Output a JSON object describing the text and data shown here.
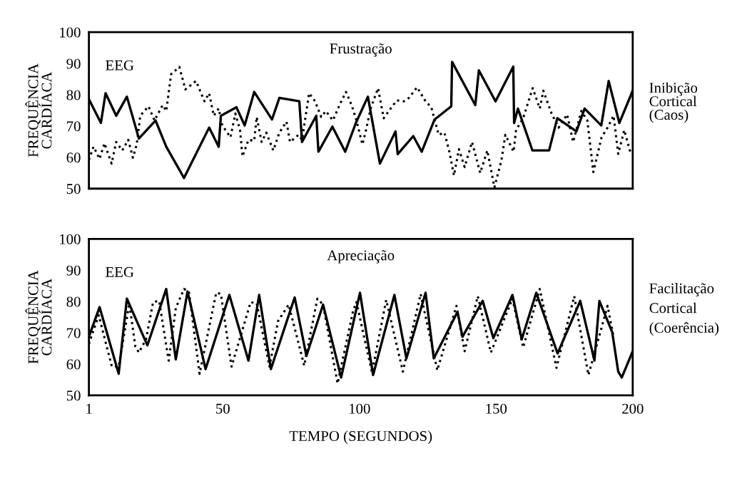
{
  "chart_data": [
    {
      "type": "line",
      "title": "Frustração",
      "ylabel": "FREQUÊNCIA\nCARDÍACA",
      "xlim": [
        1,
        200
      ],
      "ylim": [
        50,
        100
      ],
      "yticks": [
        50,
        60,
        70,
        80,
        90,
        100
      ],
      "tick_labels": "y",
      "grid": false,
      "legend": false,
      "annotations": [
        "EEG",
        "Inibição\nCortical\n(Caos)"
      ],
      "series": [
        {
          "color": "#000000",
          "line_style": "solid",
          "x": [
            1,
            5.4,
            7.1,
            11,
            14.9,
            19.3,
            25.4,
            29.3,
            35.8,
            45,
            48.5,
            49.3,
            55,
            58,
            61.5,
            68,
            70.7,
            78,
            79,
            84.2,
            85,
            90.1,
            94.8,
            98.7,
            103.1,
            107.5,
            113.2,
            114,
            119.7,
            122.8,
            127.5,
            133.6,
            133.9,
            142.4,
            143.7,
            149.8,
            156.3,
            156.6,
            158,
            163.3,
            169.4,
            172.4,
            179.4,
            182.4,
            188.5,
            191.2,
            195.1,
            200
          ],
          "values": [
            78.6,
            71,
            80.5,
            73.3,
            79.4,
            66,
            71.8,
            63.4,
            53.4,
            69.5,
            63.4,
            73.3,
            76,
            70.2,
            80.9,
            72.1,
            79,
            77.9,
            64.9,
            73.3,
            61.8,
            69.8,
            61.8,
            71,
            79.4,
            58,
            68.3,
            61,
            66.8,
            61.8,
            72.1,
            76.3,
            90.5,
            76.7,
            87.8,
            77.9,
            89,
            71,
            75.6,
            62.2,
            62.2,
            72.5,
            68.3,
            75.6,
            70.2,
            84.4,
            71,
            81.3
          ]
        },
        {
          "color": "#000000",
          "line_style": "dotted",
          "x": [
            1,
            2.7,
            4.9,
            6.7,
            9.3,
            11,
            13.2,
            15.4,
            17.1,
            18.5,
            19.8,
            22.8,
            25,
            28,
            29.3,
            31.1,
            34.1,
            36.3,
            40.2,
            43.3,
            45,
            46.7,
            48.5,
            49.8,
            52.8,
            54.6,
            56.3,
            57.2,
            59.4,
            61.5,
            62.4,
            64.2,
            65.9,
            68.5,
            70.7,
            73.3,
            74.6,
            77.7,
            79,
            81.6,
            83.8,
            86,
            87.7,
            90.3,
            92.9,
            95.1,
            97.3,
            98.9,
            101.1,
            102.4,
            104.1,
            106.8,
            108.9,
            112,
            113.7,
            116.3,
            118.1,
            121.1,
            124.2,
            126.3,
            129,
            131.1,
            132.9,
            134.6,
            136.4,
            138.5,
            141.2,
            144.2,
            146.8,
            149.4,
            152,
            153.4,
            156.4,
            157.3,
            159.9,
            163.4,
            166,
            167.3,
            170.3,
            172.9,
            176,
            178.2,
            181.2,
            183.4,
            185.6,
            188.6,
            190.8,
            193,
            194.7,
            196.9,
            199.1
          ],
          "values": [
            59.2,
            63.4,
            59.5,
            64.5,
            58,
            64.9,
            62.2,
            65.6,
            59.9,
            64.1,
            73.3,
            76.3,
            71.8,
            76.7,
            74.8,
            86.6,
            88.9,
            81.7,
            84.4,
            77.9,
            80.5,
            73.3,
            75.6,
            70.2,
            66.4,
            74,
            68.7,
            60.3,
            65.6,
            65.3,
            72.9,
            64.9,
            67.9,
            62.2,
            67.9,
            71.4,
            64.9,
            67.2,
            65.6,
            80.5,
            77.9,
            72.9,
            74.8,
            71.8,
            77.1,
            80.9,
            76.3,
            71.8,
            64.1,
            68.7,
            75.6,
            82.1,
            72.5,
            76.3,
            78.2,
            77.9,
            79,
            82.4,
            77.9,
            76,
            67.2,
            67.9,
            61.8,
            54.2,
            62.6,
            56.9,
            64.9,
            55,
            62.2,
            50.4,
            59.2,
            67.2,
            61.8,
            68.7,
            72.5,
            82.1,
            75.6,
            81.3,
            74,
            69.5,
            73.7,
            64.9,
            74.8,
            71.8,
            55.3,
            66.4,
            69.5,
            73.3,
            61.1,
            68.7,
            61.8
          ]
        }
      ]
    },
    {
      "type": "line",
      "title": "Apreciação",
      "ylabel": "FREQUÊNCIA\nCARDÍACA",
      "xlabel": "TEMPO (SEGUNDOS)",
      "xlim": [
        1,
        200
      ],
      "xticks": [
        1,
        50,
        100,
        150,
        200
      ],
      "ylim": [
        50,
        100
      ],
      "yticks": [
        50,
        60,
        70,
        80,
        90,
        100
      ],
      "grid": false,
      "legend": false,
      "annotations": [
        "EEG",
        "Facilitação\nCortical\n(Coerência)"
      ],
      "series": [
        {
          "color": "#000000",
          "line_style": "solid",
          "x": [
            1,
            4.9,
            11.9,
            14.9,
            22.4,
            29.3,
            32.8,
            37.1,
            43.7,
            52.4,
            59.4,
            63.3,
            67.6,
            76.3,
            80.6,
            86.7,
            93.3,
            100.2,
            105,
            112.8,
            117.2,
            124.2,
            127.2,
            135.9,
            137.7,
            145.1,
            149,
            156,
            159.4,
            164.7,
            172.5,
            180.8,
            186,
            187.8,
            192.5,
            194.7,
            196,
            200
          ],
          "values": [
            68.7,
            78.2,
            56.9,
            80.9,
            66,
            84,
            61.5,
            83.2,
            58.4,
            82.1,
            61.1,
            82.1,
            58.4,
            81.3,
            62.6,
            79,
            55.7,
            82.8,
            56.5,
            82.1,
            61.8,
            82.8,
            61.8,
            76.7,
            68.7,
            80.2,
            68.3,
            82.1,
            67.9,
            82.8,
            63.4,
            80.2,
            61.1,
            80.2,
            70.2,
            57.6,
            55.7,
            64.1
          ]
        },
        {
          "color": "#000000",
          "line_style": "dotted",
          "x": [
            1,
            4.6,
            9.4,
            11.9,
            15.8,
            18,
            19.3,
            21.9,
            24.5,
            26.7,
            30.2,
            32.8,
            35.8,
            37.6,
            41.5,
            47.6,
            49.3,
            53.2,
            60.2,
            62.4,
            67.1,
            70.2,
            74.1,
            79.8,
            84.6,
            86.7,
            92,
            97.7,
            98.9,
            104.6,
            109.8,
            115.9,
            122.4,
            128.5,
            135.5,
            138.5,
            143.3,
            148.1,
            156,
            159.9,
            166,
            172.1,
            178.6,
            183.8,
            190.8,
            193
          ],
          "values": [
            66.4,
            75.6,
            59.2,
            59.2,
            79.4,
            65.6,
            63.7,
            67.9,
            79.8,
            80.2,
            61.1,
            77.9,
            84,
            83.2,
            56.9,
            82.8,
            82.4,
            59.2,
            79.8,
            79.4,
            59.2,
            73.7,
            79,
            59.5,
            80.9,
            79,
            53.8,
            77.1,
            79.8,
            57.3,
            80.5,
            57.6,
            82.4,
            58,
            78.6,
            64.1,
            81.7,
            63.7,
            80.9,
            65.3,
            84,
            58.8,
            81.7,
            56.5,
            78.6,
            68.7
          ]
        }
      ]
    }
  ]
}
